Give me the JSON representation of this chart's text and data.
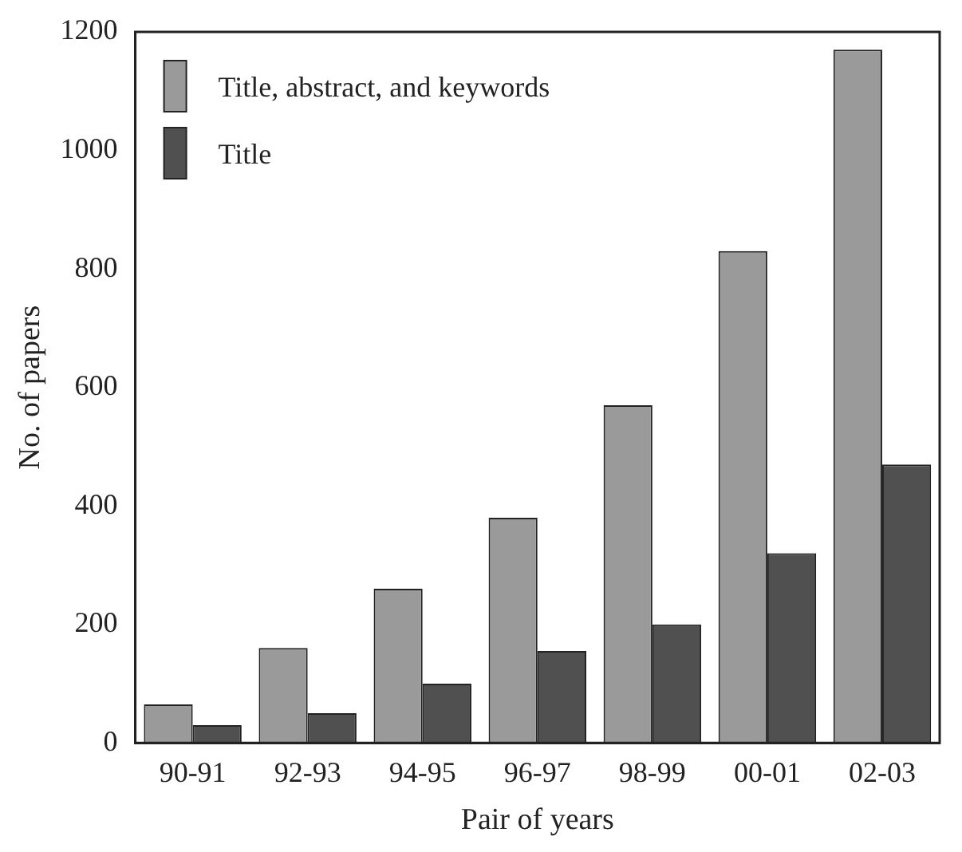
{
  "chart_data": {
    "type": "bar",
    "xlabel": "Pair of years",
    "ylabel": "No. of papers",
    "categories": [
      "90-91",
      "92-93",
      "94-95",
      "96-97",
      "98-99",
      "00-01",
      "02-03"
    ],
    "series": [
      {
        "name": "Title, abstract, and keywords",
        "color": "#9a9a9a",
        "values": [
          65,
          160,
          260,
          380,
          570,
          830,
          1170
        ]
      },
      {
        "name": "Title",
        "color": "#505050",
        "values": [
          30,
          50,
          100,
          155,
          200,
          320,
          470
        ]
      }
    ],
    "ylim": [
      0,
      1200
    ],
    "yticks": [
      0,
      200,
      400,
      600,
      800,
      1000,
      1200
    ],
    "grid": false,
    "legend": "top left"
  }
}
